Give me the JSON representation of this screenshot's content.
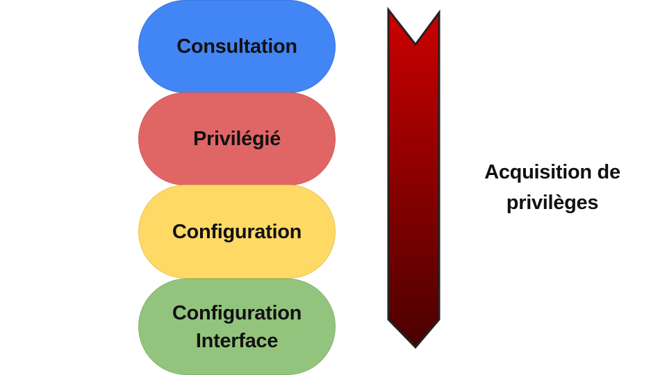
{
  "diagram": {
    "modes": [
      {
        "label": "Consultation",
        "color": "#4285f4",
        "border": "#3a78e0"
      },
      {
        "label": "Privilégié",
        "color": "#e06666",
        "border": "#d05a5a"
      },
      {
        "label": "Configuration",
        "color": "#ffd966",
        "border": "#e8c455"
      },
      {
        "label": "Configuration\nInterface",
        "color": "#93c47d",
        "border": "#82b36d"
      }
    ],
    "arrow": {
      "direction": "down",
      "gradient_top": "#cc0000",
      "gradient_bottom": "#4a0000",
      "label": "Acquisition de\nprivilèges"
    }
  }
}
